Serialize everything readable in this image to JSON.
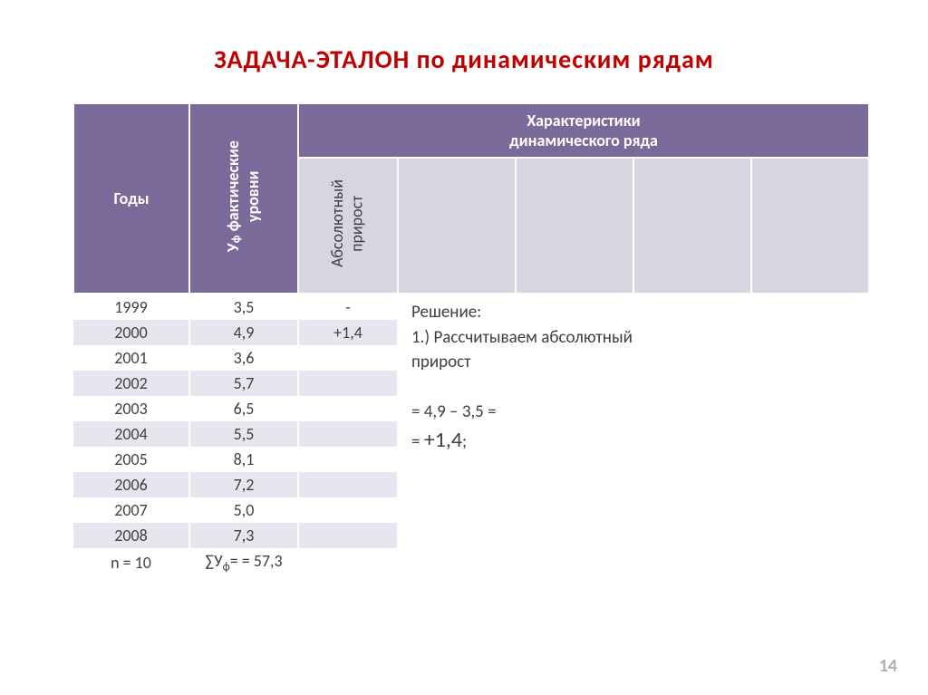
{
  "title": "ЗАДАЧА-ЭТАЛОН  по  динамическим  рядам",
  "headers": {
    "years": "Годы",
    "fact_levels_line1": "У",
    "fact_levels_sub": "ф",
    "fact_levels_line2": " фактические",
    "fact_levels_line3": "уровни",
    "characteristics_line1": "Характеристики",
    "characteristics_line2": "динамического   ряда",
    "absolute_line1": "Абсолютный",
    "absolute_line2": "прирост"
  },
  "rows": [
    {
      "year": "1999",
      "val": "3,5",
      "abs": "-"
    },
    {
      "year": "2000",
      "val": "4,9",
      "abs": "+1,4"
    },
    {
      "year": "2001",
      "val": "3,6",
      "abs": ""
    },
    {
      "year": "2002",
      "val": "5,7",
      "abs": ""
    },
    {
      "year": "2003",
      "val": "6,5",
      "abs": ""
    },
    {
      "year": "2004",
      "val": "5,5",
      "abs": ""
    },
    {
      "year": "2005",
      "val": "8,1",
      "abs": ""
    },
    {
      "year": "2006",
      "val": "7,2",
      "abs": ""
    },
    {
      "year": "2007",
      "val": "5,0",
      "abs": ""
    },
    {
      "year": "2008",
      "val": "7,3",
      "abs": ""
    }
  ],
  "summary": {
    "n": "n = 10",
    "sum_prefix": "∑У",
    "sum_sub": "ф",
    "sum_suffix": "= = 57,3"
  },
  "solution": {
    "line1": "Решение:",
    "line2": "1.)  Рассчитываем абсолютный",
    "line3": "прирост",
    "line4": "= 4,9 – 3,5 =",
    "line5_prefix": "    = ",
    "line5_big": "+1,4",
    "line5_suffix": ";"
  },
  "page_number": "14",
  "colors": {
    "title": "#c00000",
    "header_bg": "#7a6a99",
    "header_light_bg": "#d8d4e2",
    "row_even": "#e8e5ef",
    "text": "#404040",
    "pagenum": "#b0b0b0"
  }
}
